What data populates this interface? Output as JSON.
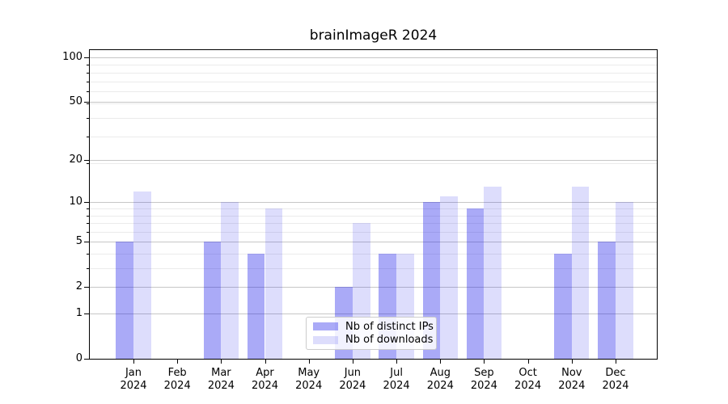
{
  "title": "brainImageR 2024",
  "colors": {
    "ips_bar": "rgba(25,25,232,0.37)",
    "downloads_bar": "rgba(25,25,232,0.15)",
    "grid_major": "#c6c6c6",
    "grid_minor": "#ebebeb",
    "axis_line": "#000000",
    "text": "#000000",
    "legend_border": "#cccccc",
    "legend_bg": "rgba(255,255,255,0.85)"
  },
  "chart_data": {
    "type": "bar",
    "title": "brainImageR 2024",
    "categories": [
      "Jan",
      "Feb",
      "Mar",
      "Apr",
      "May",
      "Jun",
      "Jul",
      "Aug",
      "Sep",
      "Oct",
      "Nov",
      "Dec"
    ],
    "category_year": "2024",
    "series": [
      {
        "name": "Nb of distinct IPs",
        "values": [
          5,
          0,
          5,
          4,
          0,
          2,
          4,
          10,
          9,
          0,
          4,
          5
        ]
      },
      {
        "name": "Nb of downloads",
        "values": [
          12,
          0,
          10,
          9,
          0,
          7,
          4,
          11,
          13,
          0,
          13,
          10
        ]
      }
    ],
    "yscale": "log1p",
    "yticks": [
      0,
      1,
      2,
      5,
      10,
      20,
      50,
      100
    ],
    "minor_yticks": [
      3,
      4,
      6,
      7,
      8,
      9,
      19,
      29,
      39,
      49,
      59,
      69,
      79,
      89
    ],
    "ylim": [
      0,
      112
    ],
    "xlabel": "",
    "ylabel": "",
    "grid": "horizontal-major-and-minor",
    "legend_position": "lower-center-inside"
  }
}
